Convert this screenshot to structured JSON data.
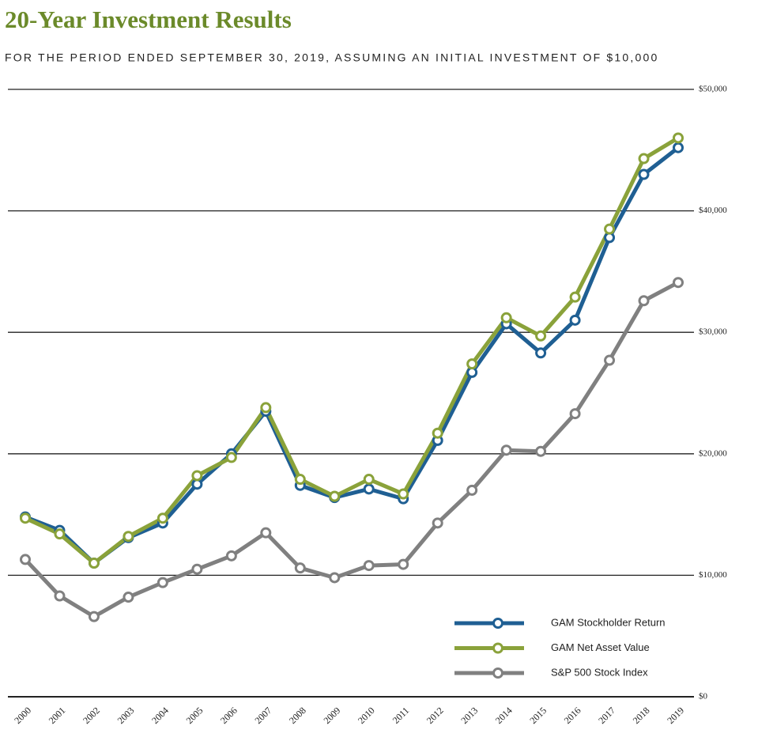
{
  "chart_data": {
    "type": "line",
    "title": "20-Year Investment Results",
    "subtitle": "FOR THE PERIOD ENDED SEPTEMBER 30, 2019, ASSUMING AN INITIAL INVESTMENT OF $10,000",
    "categories": [
      "2000",
      "2001",
      "2002",
      "2003",
      "2004",
      "2005",
      "2006",
      "2007",
      "2008",
      "2009",
      "2010",
      "2011",
      "2012",
      "2013",
      "2014",
      "2015",
      "2016",
      "2017",
      "2018",
      "2019"
    ],
    "series": [
      {
        "name": "GAM Stockholder Return",
        "color": "#1f5f93",
        "values": [
          14800,
          13700,
          11000,
          13100,
          14300,
          17500,
          20000,
          23500,
          17400,
          16400,
          17100,
          16300,
          21100,
          26700,
          30700,
          28300,
          31000,
          37800,
          43000,
          45200
        ]
      },
      {
        "name": "GAM Net Asset Value",
        "color": "#8aa23a",
        "values": [
          14700,
          13400,
          11000,
          13200,
          14700,
          18200,
          19700,
          23800,
          17900,
          16500,
          17900,
          16700,
          21700,
          27400,
          31200,
          29700,
          32900,
          38500,
          44300,
          46000
        ]
      },
      {
        "name": "S&P 500 Stock Index",
        "color": "#808080",
        "values": [
          11300,
          8300,
          6600,
          8200,
          9400,
          10500,
          11600,
          13500,
          10600,
          9800,
          10800,
          10900,
          14300,
          17000,
          20300,
          20200,
          23300,
          27700,
          32600,
          34100
        ]
      }
    ],
    "ylim": [
      0,
      50000
    ],
    "yticks": [
      {
        "value": 0,
        "label": "$0"
      },
      {
        "value": 10000,
        "label": "$10,000"
      },
      {
        "value": 20000,
        "label": "$20,000"
      },
      {
        "value": 30000,
        "label": "$30,000"
      },
      {
        "value": 40000,
        "label": "$40,000"
      },
      {
        "value": 50000,
        "label": "$50,000"
      }
    ],
    "grid": true,
    "legend": "lower right"
  }
}
